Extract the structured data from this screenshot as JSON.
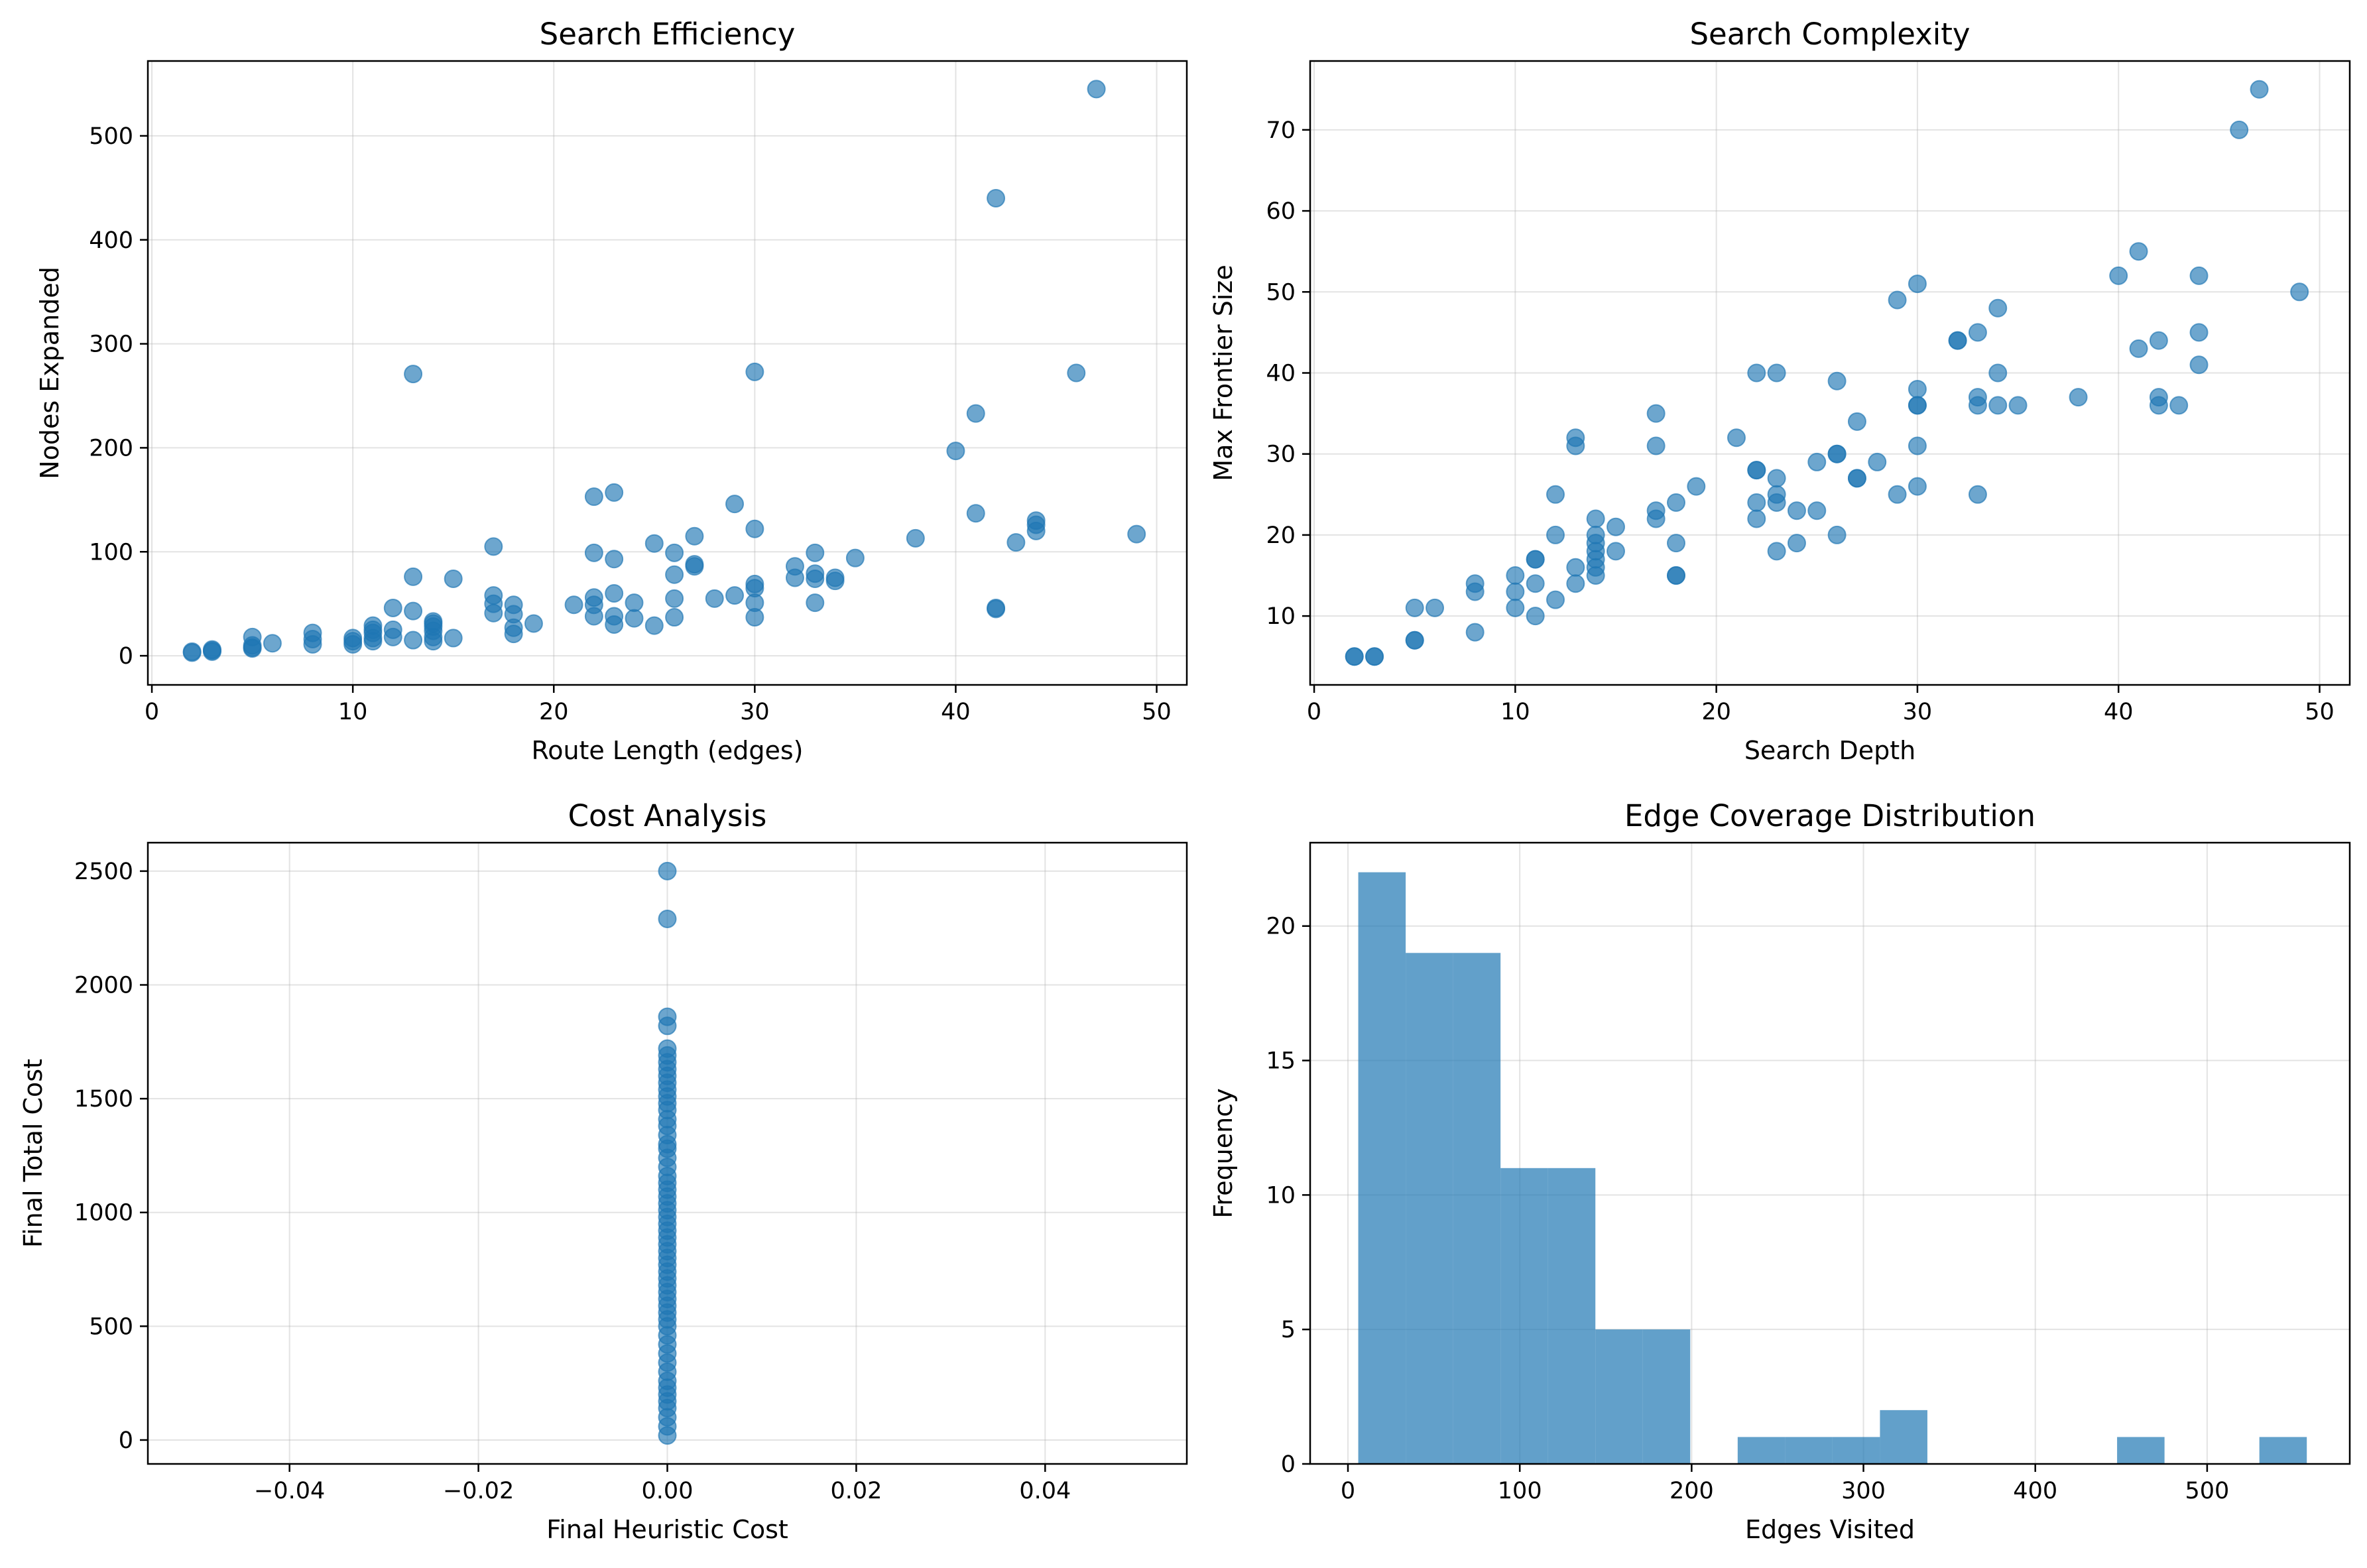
{
  "colors": {
    "marker": "#1f77b4",
    "background": "#ffffff",
    "axes": "#000000",
    "grid": "#b0b0b0"
  },
  "chart_data": [
    {
      "type": "scatter",
      "title": "Search Efficiency",
      "xlabel": "Route Length (edges)",
      "ylabel": "Nodes Expanded",
      "xlim": [
        -0.2,
        51.5
      ],
      "ylim": [
        -28,
        572
      ],
      "xticks": [
        0,
        10,
        20,
        30,
        40,
        50
      ],
      "yticks": [
        0,
        100,
        200,
        300,
        400,
        500
      ],
      "xtick_labels": [
        "0",
        "10",
        "20",
        "30",
        "40",
        "50"
      ],
      "ytick_labels": [
        "0",
        "100",
        "200",
        "300",
        "400",
        "500"
      ],
      "grid": true,
      "marker_alpha": 0.65,
      "points": [
        [
          2,
          3
        ],
        [
          2,
          4
        ],
        [
          3,
          4
        ],
        [
          3,
          5
        ],
        [
          3,
          6
        ],
        [
          5,
          7
        ],
        [
          5,
          8
        ],
        [
          5,
          10
        ],
        [
          5,
          18
        ],
        [
          6,
          12
        ],
        [
          8,
          11
        ],
        [
          8,
          16
        ],
        [
          8,
          22
        ],
        [
          10,
          11
        ],
        [
          10,
          14
        ],
        [
          10,
          17
        ],
        [
          11,
          14
        ],
        [
          11,
          17
        ],
        [
          11,
          22
        ],
        [
          11,
          25
        ],
        [
          11,
          29
        ],
        [
          12,
          18
        ],
        [
          12,
          25
        ],
        [
          12,
          46
        ],
        [
          13,
          15
        ],
        [
          13,
          43
        ],
        [
          13,
          76
        ],
        [
          13,
          271
        ],
        [
          14,
          14
        ],
        [
          14,
          18
        ],
        [
          14,
          24
        ],
        [
          14,
          28
        ],
        [
          14,
          31
        ],
        [
          14,
          33
        ],
        [
          15,
          17
        ],
        [
          15,
          74
        ],
        [
          17,
          41
        ],
        [
          17,
          50
        ],
        [
          17,
          58
        ],
        [
          17,
          105
        ],
        [
          18,
          21
        ],
        [
          18,
          27
        ],
        [
          18,
          40
        ],
        [
          18,
          49
        ],
        [
          19,
          31
        ],
        [
          21,
          49
        ],
        [
          22,
          38
        ],
        [
          22,
          49
        ],
        [
          22,
          56
        ],
        [
          22,
          99
        ],
        [
          22,
          153
        ],
        [
          23,
          30
        ],
        [
          23,
          38
        ],
        [
          23,
          60
        ],
        [
          23,
          93
        ],
        [
          23,
          157
        ],
        [
          24,
          36
        ],
        [
          24,
          51
        ],
        [
          25,
          29
        ],
        [
          25,
          108
        ],
        [
          26,
          37
        ],
        [
          26,
          55
        ],
        [
          26,
          78
        ],
        [
          26,
          99
        ],
        [
          27,
          86
        ],
        [
          27,
          88
        ],
        [
          27,
          115
        ],
        [
          28,
          55
        ],
        [
          29,
          58
        ],
        [
          29,
          146
        ],
        [
          30,
          37
        ],
        [
          30,
          51
        ],
        [
          30,
          65
        ],
        [
          30,
          69
        ],
        [
          30,
          122
        ],
        [
          30,
          273
        ],
        [
          32,
          75
        ],
        [
          32,
          86
        ],
        [
          33,
          51
        ],
        [
          33,
          74
        ],
        [
          33,
          79
        ],
        [
          33,
          99
        ],
        [
          34,
          72
        ],
        [
          34,
          75
        ],
        [
          35,
          94
        ],
        [
          38,
          113
        ],
        [
          40,
          197
        ],
        [
          41,
          137
        ],
        [
          41,
          233
        ],
        [
          42,
          45
        ],
        [
          42,
          46
        ],
        [
          42,
          440
        ],
        [
          43,
          109
        ],
        [
          44,
          120
        ],
        [
          44,
          126
        ],
        [
          44,
          130
        ],
        [
          46,
          272
        ],
        [
          47,
          545
        ],
        [
          49,
          117
        ]
      ]
    },
    {
      "type": "scatter",
      "title": "Search Complexity",
      "xlabel": "Search Depth",
      "ylabel": "Max Frontier Size",
      "xlim": [
        -0.2,
        51.5
      ],
      "ylim": [
        1.5,
        78.5
      ],
      "xticks": [
        0,
        10,
        20,
        30,
        40,
        50
      ],
      "yticks": [
        10,
        20,
        30,
        40,
        50,
        60,
        70
      ],
      "xtick_labels": [
        "0",
        "10",
        "20",
        "30",
        "40",
        "50"
      ],
      "ytick_labels": [
        "10",
        "20",
        "30",
        "40",
        "50",
        "60",
        "70"
      ],
      "grid": true,
      "marker_alpha": 0.65,
      "points": [
        [
          2,
          5
        ],
        [
          2,
          5
        ],
        [
          3,
          5
        ],
        [
          3,
          5
        ],
        [
          5,
          7
        ],
        [
          5,
          7
        ],
        [
          5,
          11
        ],
        [
          6,
          11
        ],
        [
          8,
          8
        ],
        [
          8,
          13
        ],
        [
          8,
          14
        ],
        [
          10,
          11
        ],
        [
          10,
          13
        ],
        [
          10,
          15
        ],
        [
          11,
          10
        ],
        [
          11,
          14
        ],
        [
          11,
          17
        ],
        [
          11,
          17
        ],
        [
          12,
          12
        ],
        [
          12,
          20
        ],
        [
          12,
          25
        ],
        [
          13,
          14
        ],
        [
          13,
          16
        ],
        [
          13,
          31
        ],
        [
          13,
          32
        ],
        [
          14,
          15
        ],
        [
          14,
          16
        ],
        [
          14,
          17
        ],
        [
          14,
          18
        ],
        [
          14,
          19
        ],
        [
          14,
          20
        ],
        [
          14,
          22
        ],
        [
          15,
          18
        ],
        [
          15,
          21
        ],
        [
          17,
          22
        ],
        [
          17,
          23
        ],
        [
          17,
          31
        ],
        [
          17,
          35
        ],
        [
          18,
          15
        ],
        [
          18,
          15
        ],
        [
          18,
          19
        ],
        [
          18,
          24
        ],
        [
          19,
          26
        ],
        [
          21,
          32
        ],
        [
          22,
          22
        ],
        [
          22,
          24
        ],
        [
          22,
          28
        ],
        [
          22,
          28
        ],
        [
          22,
          40
        ],
        [
          23,
          18
        ],
        [
          23,
          24
        ],
        [
          23,
          25
        ],
        [
          23,
          27
        ],
        [
          23,
          40
        ],
        [
          24,
          19
        ],
        [
          24,
          23
        ],
        [
          25,
          23
        ],
        [
          25,
          29
        ],
        [
          26,
          20
        ],
        [
          26,
          30
        ],
        [
          26,
          30
        ],
        [
          26,
          39
        ],
        [
          27,
          27
        ],
        [
          27,
          27
        ],
        [
          27,
          34
        ],
        [
          28,
          29
        ],
        [
          29,
          25
        ],
        [
          29,
          49
        ],
        [
          30,
          26
        ],
        [
          30,
          31
        ],
        [
          30,
          36
        ],
        [
          30,
          36
        ],
        [
          30,
          38
        ],
        [
          30,
          51
        ],
        [
          32,
          44
        ],
        [
          32,
          44
        ],
        [
          33,
          25
        ],
        [
          33,
          36
        ],
        [
          33,
          37
        ],
        [
          33,
          45
        ],
        [
          34,
          36
        ],
        [
          34,
          40
        ],
        [
          34,
          48
        ],
        [
          35,
          36
        ],
        [
          38,
          37
        ],
        [
          40,
          52
        ],
        [
          41,
          43
        ],
        [
          41,
          55
        ],
        [
          42,
          36
        ],
        [
          42,
          37
        ],
        [
          42,
          44
        ],
        [
          43,
          36
        ],
        [
          44,
          41
        ],
        [
          44,
          45
        ],
        [
          44,
          52
        ],
        [
          46,
          70
        ],
        [
          47,
          75
        ],
        [
          49,
          50
        ]
      ]
    },
    {
      "type": "scatter",
      "title": "Cost Analysis",
      "xlabel": "Final Heuristic Cost",
      "ylabel": "Final Total Cost",
      "xlim": [
        -0.055,
        0.055
      ],
      "ylim": [
        -105,
        2625
      ],
      "xticks": [
        -0.04,
        -0.02,
        0.0,
        0.02,
        0.04
      ],
      "yticks": [
        0,
        500,
        1000,
        1500,
        2000,
        2500
      ],
      "xtick_labels": [
        "−0.04",
        "−0.02",
        "0.00",
        "0.02",
        "0.04"
      ],
      "ytick_labels": [
        "0",
        "500",
        "1000",
        "1500",
        "2000",
        "2500"
      ],
      "grid": true,
      "marker_alpha": 0.65,
      "points": [
        [
          0,
          20
        ],
        [
          0,
          60
        ],
        [
          0,
          100
        ],
        [
          0,
          140
        ],
        [
          0,
          170
        ],
        [
          0,
          200
        ],
        [
          0,
          230
        ],
        [
          0,
          260
        ],
        [
          0,
          300
        ],
        [
          0,
          340
        ],
        [
          0,
          380
        ],
        [
          0,
          420
        ],
        [
          0,
          460
        ],
        [
          0,
          500
        ],
        [
          0,
          530
        ],
        [
          0,
          560
        ],
        [
          0,
          590
        ],
        [
          0,
          620
        ],
        [
          0,
          650
        ],
        [
          0,
          680
        ],
        [
          0,
          710
        ],
        [
          0,
          740
        ],
        [
          0,
          770
        ],
        [
          0,
          800
        ],
        [
          0,
          830
        ],
        [
          0,
          860
        ],
        [
          0,
          890
        ],
        [
          0,
          920
        ],
        [
          0,
          950
        ],
        [
          0,
          980
        ],
        [
          0,
          1010
        ],
        [
          0,
          1040
        ],
        [
          0,
          1070
        ],
        [
          0,
          1100
        ],
        [
          0,
          1130
        ],
        [
          0,
          1160
        ],
        [
          0,
          1200
        ],
        [
          0,
          1240
        ],
        [
          0,
          1280
        ],
        [
          0,
          1300
        ],
        [
          0,
          1340
        ],
        [
          0,
          1380
        ],
        [
          0,
          1410
        ],
        [
          0,
          1450
        ],
        [
          0,
          1480
        ],
        [
          0,
          1510
        ],
        [
          0,
          1540
        ],
        [
          0,
          1570
        ],
        [
          0,
          1600
        ],
        [
          0,
          1630
        ],
        [
          0,
          1660
        ],
        [
          0,
          1690
        ],
        [
          0,
          1720
        ],
        [
          0,
          1820
        ],
        [
          0,
          1860
        ],
        [
          0,
          2290
        ],
        [
          0,
          2500
        ]
      ]
    },
    {
      "type": "bar",
      "title": "Edge Coverage Distribution",
      "xlabel": "Edges Visited",
      "ylabel": "Frequency",
      "xlim": [
        -22,
        583
      ],
      "ylim": [
        0,
        23.1
      ],
      "xticks": [
        0,
        100,
        200,
        300,
        400,
        500
      ],
      "yticks": [
        0,
        5,
        10,
        15,
        20
      ],
      "xtick_labels": [
        "0",
        "100",
        "200",
        "300",
        "400",
        "500"
      ],
      "ytick_labels": [
        "0",
        "5",
        "10",
        "15",
        "20"
      ],
      "grid": true,
      "bar_alpha": 0.7,
      "bin_width": 27.6,
      "bins": [
        {
          "start": 6,
          "count": 22
        },
        {
          "start": 33.6,
          "count": 19
        },
        {
          "start": 61.2,
          "count": 19
        },
        {
          "start": 88.8,
          "count": 11
        },
        {
          "start": 116.4,
          "count": 11
        },
        {
          "start": 144,
          "count": 5
        },
        {
          "start": 171.6,
          "count": 5
        },
        {
          "start": 199.2,
          "count": 0
        },
        {
          "start": 226.8,
          "count": 1
        },
        {
          "start": 254.4,
          "count": 1
        },
        {
          "start": 282,
          "count": 1
        },
        {
          "start": 309.6,
          "count": 2
        },
        {
          "start": 337.2,
          "count": 0
        },
        {
          "start": 364.8,
          "count": 0
        },
        {
          "start": 392.4,
          "count": 0
        },
        {
          "start": 420,
          "count": 0
        },
        {
          "start": 447.6,
          "count": 1
        },
        {
          "start": 475.2,
          "count": 0
        },
        {
          "start": 502.8,
          "count": 0
        },
        {
          "start": 530.4,
          "count": 1
        }
      ]
    }
  ]
}
